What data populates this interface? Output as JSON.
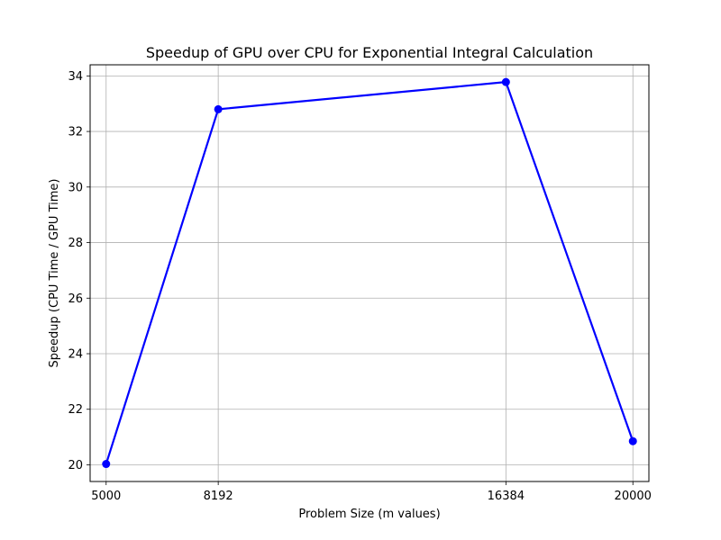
{
  "chart_data": {
    "type": "line",
    "title": "Speedup of GPU over CPU for Exponential Integral Calculation",
    "xlabel": "Problem Size (m values)",
    "ylabel": "Speedup (CPU Time / GPU Time)",
    "xlim": [
      4544,
      20456
    ],
    "ylim": [
      19.4,
      34.4
    ],
    "x_ticks": [
      5000,
      8192,
      16384,
      20000
    ],
    "x_tick_labels": [
      "5000",
      "8192",
      "16384",
      "20000"
    ],
    "y_ticks": [
      20,
      22,
      24,
      26,
      28,
      30,
      32,
      34
    ],
    "y_tick_labels": [
      "20",
      "22",
      "24",
      "26",
      "28",
      "30",
      "32",
      "34"
    ],
    "grid": true,
    "series": [
      {
        "x": [
          5000,
          8192,
          16384,
          20000
        ],
        "y": [
          20.03,
          32.8,
          33.78,
          20.85
        ],
        "color": "#0000ff",
        "marker": "circle"
      }
    ],
    "colors": {
      "line": "#0000ff",
      "grid": "#b0b0b0",
      "axes": "#000000"
    }
  }
}
